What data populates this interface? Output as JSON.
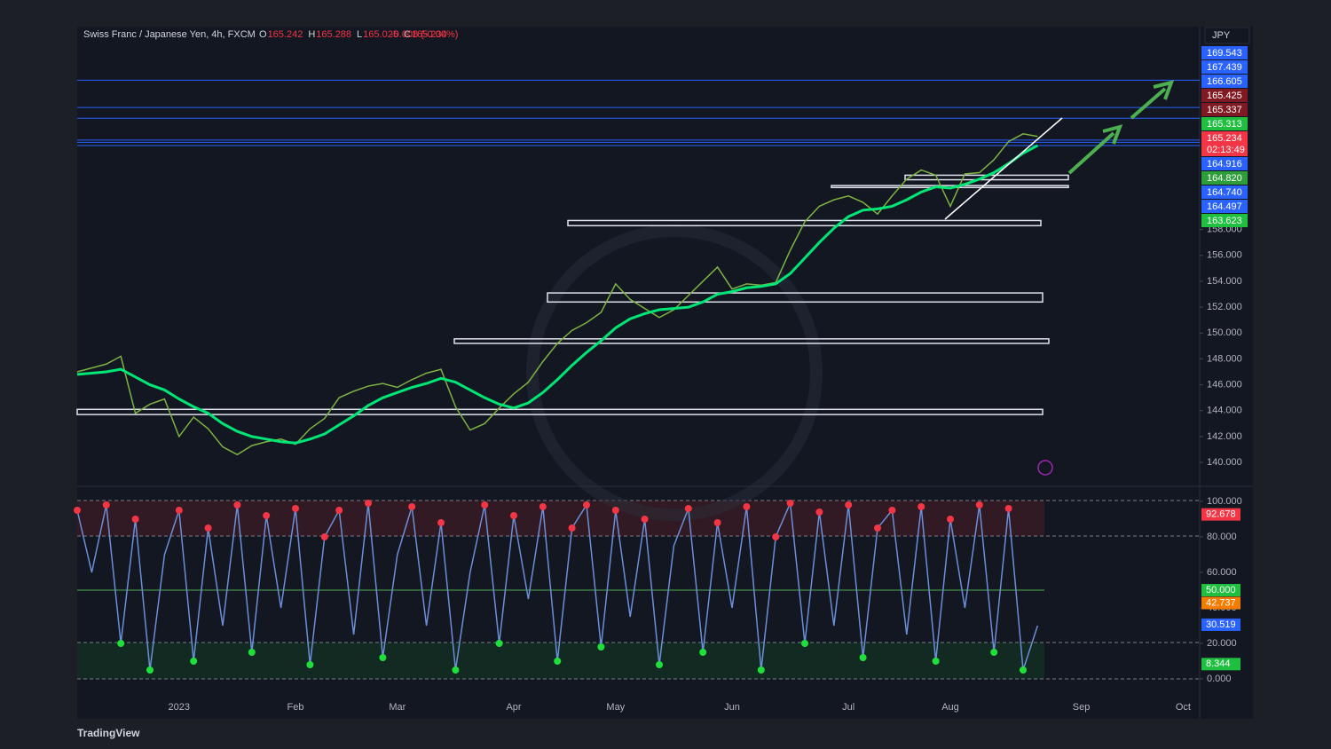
{
  "header": {
    "symbol": "Swiss Franc / Japanese Yen, 4h, FXCM",
    "ohlc": [
      {
        "label": "O",
        "value": 165.242
      },
      {
        "label": "H",
        "value": 165.288
      },
      {
        "label": "L",
        "value": 165.025
      },
      {
        "label": "C",
        "value": 165.234
      }
    ],
    "change": "-0.008 (-0.00%)",
    "currency": "JPY",
    "countdown": "02:13:49",
    "brand": "TradingView"
  },
  "chart_data": [
    {
      "type": "line",
      "categories": [
        null,
        null,
        null,
        null,
        null,
        null,
        null,
        "2023",
        null,
        null,
        null,
        null,
        null,
        null,
        null,
        "Feb",
        null,
        null,
        null,
        null,
        null,
        null,
        "Mar",
        null,
        null,
        null,
        null,
        null,
        null,
        null,
        "Apr",
        null,
        null,
        null,
        null,
        null,
        null,
        "May",
        null,
        null,
        null,
        null,
        null,
        null,
        null,
        "Jun",
        null,
        null,
        null,
        null,
        null,
        null,
        null,
        "Jul",
        null,
        null,
        null,
        null,
        null,
        null,
        "Aug",
        null,
        null,
        null,
        null,
        null,
        null,
        null,
        null,
        "Sep",
        null,
        null,
        null,
        null,
        null,
        null,
        "Oct",
        null,
        null,
        null,
        null,
        null
      ],
      "series": [
        {
          "color": "#7cb342",
          "values": [
            147.0,
            147.3,
            147.6,
            148.2,
            143.8,
            144.5,
            144.9,
            142.0,
            143.5,
            142.6,
            141.2,
            140.6,
            141.3,
            141.6,
            141.8,
            141.4,
            142.6,
            143.4,
            145.0,
            145.5,
            145.9,
            146.1,
            145.8,
            146.4,
            146.9,
            147.2,
            144.3,
            142.5,
            143.0,
            144.2,
            145.3,
            146.2,
            147.8,
            149.2,
            150.2,
            150.8,
            151.6,
            153.8,
            152.6,
            151.9,
            151.2,
            151.8,
            152.9,
            154.0,
            155.1,
            153.4,
            153.8,
            153.7,
            153.9,
            156.4,
            158.6,
            159.8,
            160.3,
            160.6,
            160.1,
            159.2,
            160.6,
            161.9,
            162.6,
            162.2,
            159.8,
            162.3,
            162.4,
            163.4,
            164.8,
            165.4,
            165.2,
            null,
            null,
            null,
            null,
            null,
            null,
            null,
            null,
            null,
            null,
            null,
            null,
            null,
            null,
            null
          ]
        },
        {
          "color": "#00e676",
          "values": [
            146.8,
            146.9,
            147.0,
            147.2,
            146.6,
            146.0,
            145.6,
            144.9,
            144.3,
            143.8,
            143.0,
            142.4,
            142.0,
            141.8,
            141.6,
            141.5,
            141.8,
            142.2,
            142.9,
            143.6,
            144.4,
            145.0,
            145.4,
            145.8,
            146.1,
            146.5,
            146.2,
            145.6,
            145.0,
            144.5,
            144.2,
            144.6,
            145.4,
            146.4,
            147.5,
            148.5,
            149.4,
            150.4,
            151.1,
            151.5,
            151.8,
            151.9,
            152.0,
            152.4,
            153.0,
            153.2,
            153.5,
            153.6,
            153.8,
            154.6,
            155.8,
            157.0,
            158.1,
            159.0,
            159.5,
            159.6,
            159.8,
            160.3,
            160.9,
            161.3,
            161.2,
            161.5,
            161.9,
            162.4,
            163.1,
            163.9,
            164.5,
            null,
            null,
            null,
            null,
            null,
            null,
            null,
            null,
            null,
            null,
            null,
            null,
            null,
            null,
            null
          ]
        }
      ],
      "ylim": [
        138.7,
        173.0
      ],
      "yticks": [
        {
          "value": 140,
          "label": "140.000"
        },
        {
          "value": 142,
          "label": "142.000"
        },
        {
          "value": 144,
          "label": "144.000"
        },
        {
          "value": 146,
          "label": "146.000"
        },
        {
          "value": 148,
          "label": "148.000"
        },
        {
          "value": 150,
          "label": "150.000"
        },
        {
          "value": 152,
          "label": "152.000"
        },
        {
          "value": 154,
          "label": "154.000"
        },
        {
          "value": 156,
          "label": "156.000"
        },
        {
          "value": 158,
          "label": "158.000"
        }
      ],
      "zones": [
        {
          "top": 144.1,
          "bottom": 143.7
        },
        {
          "top": 149.55,
          "bottom": 149.2
        },
        {
          "top": 153.1,
          "bottom": 152.4
        },
        {
          "top": 158.7,
          "bottom": 158.3
        },
        {
          "top": 161.4,
          "bottom": 161.25
        },
        {
          "top": 162.2,
          "bottom": 161.85
        }
      ],
      "price_tags": [
        {
          "value": 169.543,
          "color": "#2962ff"
        },
        {
          "value": 167.439,
          "color": "#2962ff"
        },
        {
          "value": 166.605,
          "color": "#2962ff"
        },
        {
          "value": 165.425,
          "color": "#801922"
        },
        {
          "value": 165.337,
          "color": "#801922"
        },
        {
          "value": 165.313,
          "color": "#1fbf3f"
        },
        {
          "value": 165.234,
          "color": "#f23645"
        },
        {
          "value": 164.916,
          "color": "#2962ff"
        },
        {
          "value": 164.82,
          "label": "164.820",
          "color": "#2e9e3a"
        },
        {
          "value": 164.74,
          "label": "164.740",
          "color": "#2962ff"
        },
        {
          "value": 164.497,
          "color": "#2962ff"
        },
        {
          "value": 163.623,
          "color": "#1fbf3f"
        }
      ]
    },
    {
      "type": "line",
      "categories": [
        null,
        null,
        null,
        null,
        null,
        null,
        null,
        "2023",
        null,
        null,
        null,
        null,
        null,
        null,
        null,
        "Feb",
        null,
        null,
        null,
        null,
        null,
        null,
        "Mar",
        null,
        null,
        null,
        null,
        null,
        null,
        null,
        "Apr",
        null,
        null,
        null,
        null,
        null,
        null,
        "May",
        null,
        null,
        null,
        null,
        null,
        null,
        null,
        "Jun",
        null,
        null,
        null,
        null,
        null,
        null,
        null,
        "Jul",
        null,
        null,
        null,
        null,
        null,
        null,
        "Aug",
        null,
        null,
        null,
        null,
        null,
        null,
        null,
        null,
        "Sep",
        null,
        null,
        null,
        null,
        null,
        null,
        "Oct",
        null,
        null,
        null,
        null,
        null
      ],
      "series": [
        {
          "color": "#6a8fd8",
          "values": [
            95,
            60,
            98,
            20,
            90,
            5,
            70,
            95,
            10,
            85,
            30,
            98,
            15,
            92,
            40,
            96,
            8,
            80,
            95,
            25,
            99,
            12,
            70,
            97,
            30,
            88,
            5,
            60,
            98,
            20,
            92,
            45,
            97,
            10,
            85,
            98,
            18,
            95,
            35,
            90,
            8,
            75,
            96,
            15,
            88,
            40,
            97,
            5,
            80,
            99,
            20,
            94,
            30,
            98,
            12,
            85,
            95,
            25,
            97,
            10,
            90,
            40,
            98,
            15,
            96,
            5,
            30,
            null,
            null,
            null,
            null,
            null,
            null,
            null,
            null,
            null,
            null,
            null,
            null,
            null,
            null,
            null
          ]
        }
      ],
      "ylim": [
        -5,
        105
      ],
      "yticks": [
        {
          "value": 0,
          "label": "0.000"
        },
        {
          "value": 20,
          "label": "20.000"
        },
        {
          "value": 40,
          "label": "40.000"
        },
        {
          "value": 60,
          "label": "60.000"
        },
        {
          "value": 80,
          "label": "80.000"
        },
        {
          "value": 100,
          "label": "100.000"
        }
      ],
      "value_tags": [
        {
          "value": 92.678,
          "color": "#f23645"
        },
        {
          "value": 50,
          "label": "50.000",
          "color": "#1fbf3f"
        },
        {
          "value": 42.737,
          "color": "#f57c00"
        },
        {
          "value": 30.519,
          "color": "#2962ff"
        },
        {
          "value": 8.344,
          "color": "#1fbf3f"
        }
      ]
    }
  ]
}
